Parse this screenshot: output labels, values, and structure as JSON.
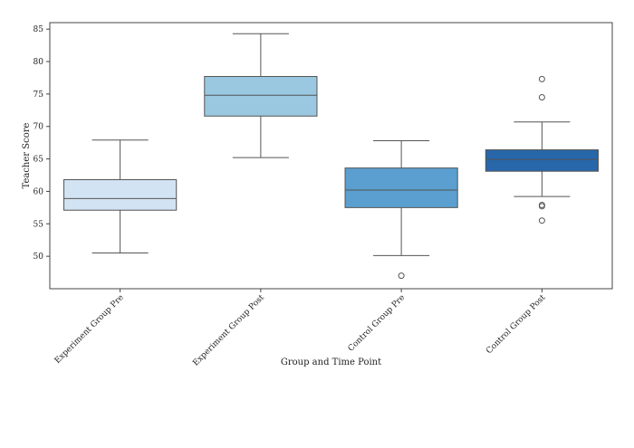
{
  "chart_data": {
    "type": "box",
    "title": "",
    "xlabel": "Group and Time Point",
    "ylabel": "Teacher Score",
    "ylim": [
      45,
      86
    ],
    "yticks": [
      50,
      55,
      60,
      65,
      70,
      75,
      80,
      85
    ],
    "grid": false,
    "categories": [
      "Experiment Group Pre",
      "Experiment Group Post",
      "Control Group Pre",
      "Control Group Post"
    ],
    "boxes": [
      {
        "category": "Experiment Group Pre",
        "whisker_low": 50.5,
        "q1": 57.1,
        "median": 58.9,
        "q3": 61.8,
        "whisker_high": 67.9,
        "outliers": [],
        "color": "#d2e3f3"
      },
      {
        "category": "Experiment Group Post",
        "whisker_low": 65.2,
        "q1": 71.6,
        "median": 74.8,
        "q3": 77.7,
        "whisker_high": 84.3,
        "outliers": [],
        "color": "#9ac8e0"
      },
      {
        "category": "Control Group Pre",
        "whisker_low": 50.1,
        "q1": 57.5,
        "median": 60.2,
        "q3": 63.6,
        "whisker_high": 67.8,
        "outliers": [
          47.0
        ],
        "color": "#5a9fcf"
      },
      {
        "category": "Control Group Post",
        "whisker_low": 59.2,
        "q1": 63.1,
        "median": 64.9,
        "q3": 66.4,
        "whisker_high": 70.7,
        "outliers": [
          77.3,
          74.5,
          57.9,
          57.7,
          55.5
        ],
        "color": "#2767aa"
      }
    ]
  }
}
